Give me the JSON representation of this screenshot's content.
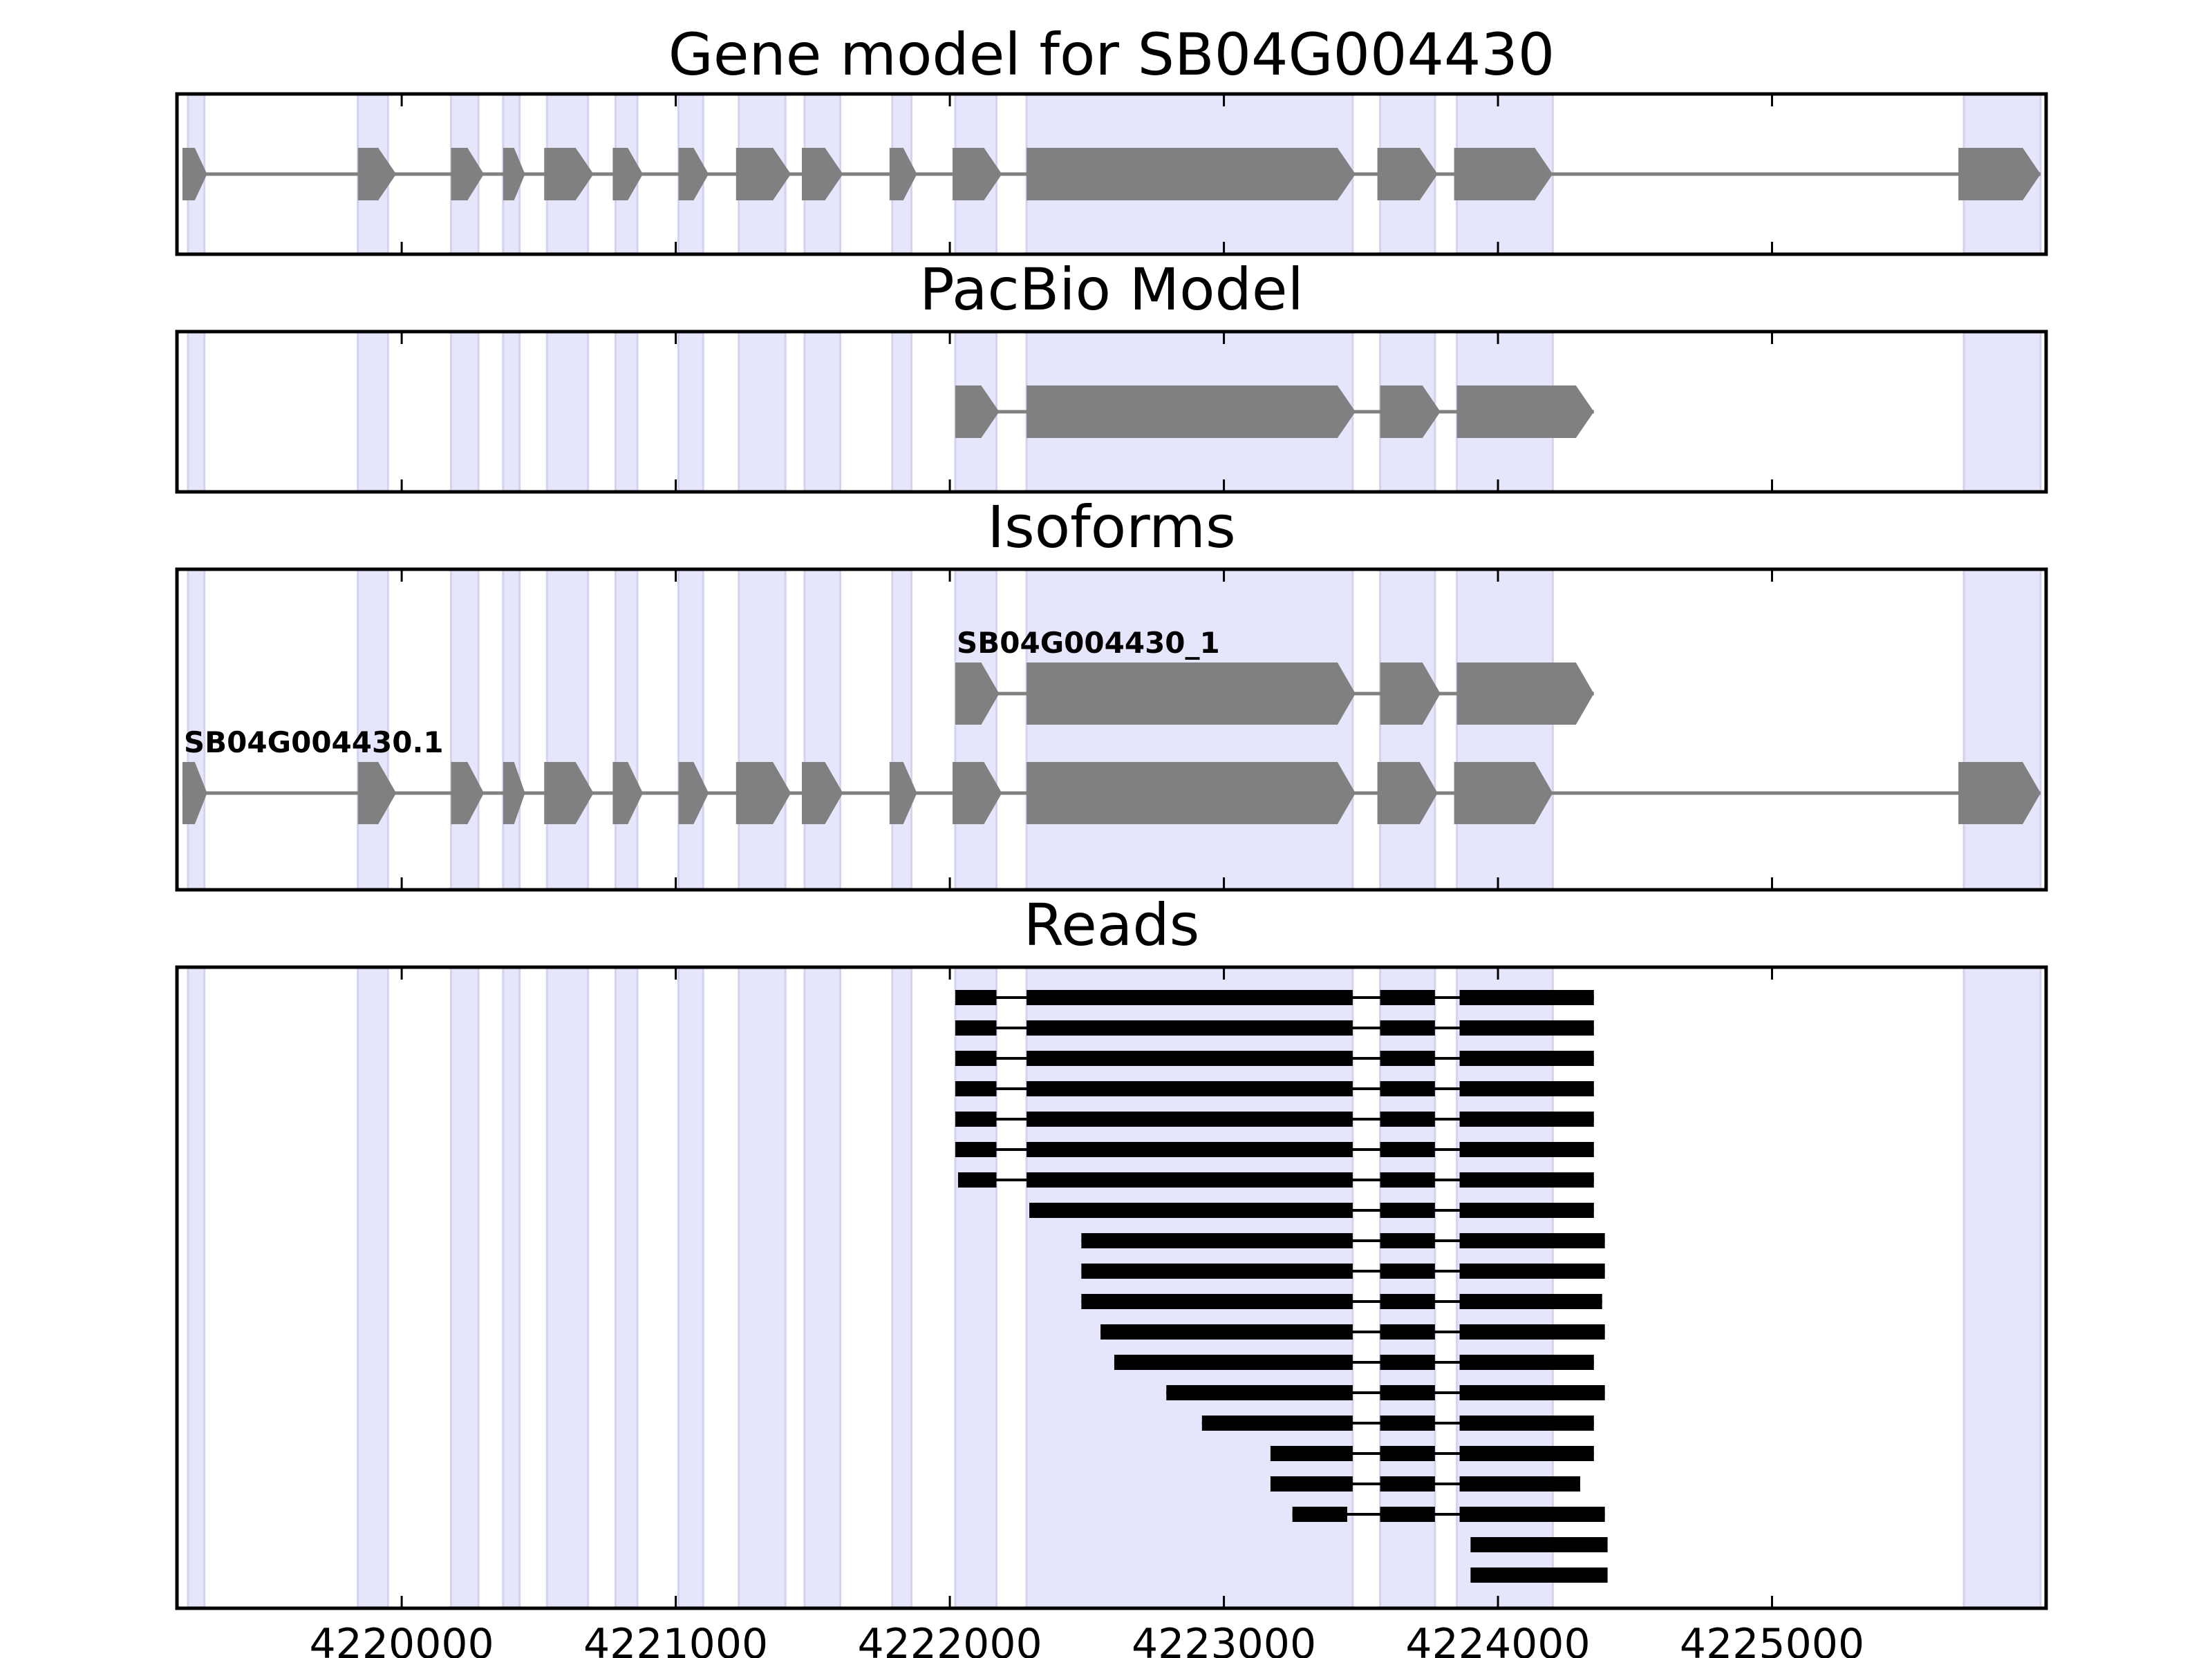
{
  "chart_data": {
    "type": "gene_track",
    "xlim": [
      4219180,
      4226000
    ],
    "x_ticks": [
      4220000,
      4221000,
      4222000,
      4223000,
      4224000,
      4225000
    ],
    "colors": {
      "highlight": "#e5e5fb",
      "highlight_edge": "#d3d3ee",
      "exon": "#808080",
      "read": "#000000",
      "frame": "#000000"
    },
    "highlight_regions": [
      [
        4219220,
        4219280
      ],
      [
        4219840,
        4219950
      ],
      [
        4220180,
        4220280
      ],
      [
        4220370,
        4220430
      ],
      [
        4220530,
        4220680
      ],
      [
        4220780,
        4220860
      ],
      [
        4221010,
        4221100
      ],
      [
        4221230,
        4221400
      ],
      [
        4221470,
        4221600
      ],
      [
        4221790,
        4221860
      ],
      [
        4222020,
        4222170
      ],
      [
        4222280,
        4223470
      ],
      [
        4223570,
        4223770
      ],
      [
        4223850,
        4224200
      ],
      [
        4225700,
        4225980
      ]
    ],
    "panels": [
      {
        "title": "Gene model for SB04G004430",
        "kind": "gene",
        "transcripts": [
          {
            "label": "",
            "exons": [
              [
                4219200,
                4219290
              ],
              [
                4219840,
                4219980
              ],
              [
                4220180,
                4220300
              ],
              [
                4220370,
                4220450
              ],
              [
                4220520,
                4220700
              ],
              [
                4220770,
                4220880
              ],
              [
                4221010,
                4221120
              ],
              [
                4221220,
                4221420
              ],
              [
                4221460,
                4221610
              ],
              [
                4221780,
                4221880
              ],
              [
                4222010,
                4222190
              ],
              [
                4222280,
                4223480
              ],
              [
                4223560,
                4223780
              ],
              [
                4223840,
                4224200
              ],
              [
                4225680,
                4225980
              ]
            ]
          }
        ]
      },
      {
        "title": "PacBio Model",
        "kind": "gene",
        "transcripts": [
          {
            "label": "",
            "exons": [
              [
                4222020,
                4222180
              ],
              [
                4222280,
                4223480
              ],
              [
                4223570,
                4223790
              ],
              [
                4223850,
                4224350
              ]
            ]
          }
        ]
      },
      {
        "title": "Isoforms",
        "kind": "gene",
        "transcripts": [
          {
            "label": "SB04G004430.1",
            "exons": [
              [
                4219200,
                4219290
              ],
              [
                4219840,
                4219980
              ],
              [
                4220180,
                4220300
              ],
              [
                4220370,
                4220450
              ],
              [
                4220520,
                4220700
              ],
              [
                4220770,
                4220880
              ],
              [
                4221010,
                4221120
              ],
              [
                4221220,
                4221420
              ],
              [
                4221460,
                4221610
              ],
              [
                4221780,
                4221880
              ],
              [
                4222010,
                4222190
              ],
              [
                4222280,
                4223480
              ],
              [
                4223560,
                4223780
              ],
              [
                4223840,
                4224200
              ],
              [
                4225680,
                4225980
              ]
            ]
          },
          {
            "label": "SB04G004430_1",
            "exons": [
              [
                4222020,
                4222180
              ],
              [
                4222280,
                4223480
              ],
              [
                4223570,
                4223790
              ],
              [
                4223850,
                4224350
              ]
            ]
          }
        ]
      },
      {
        "title": "Reads",
        "kind": "reads",
        "reads": [
          [
            [
              4222020,
              4222170
            ],
            [
              4222280,
              4223470
            ],
            [
              4223570,
              4223770
            ],
            [
              4223860,
              4224350
            ]
          ],
          [
            [
              4222020,
              4222170
            ],
            [
              4222280,
              4223470
            ],
            [
              4223570,
              4223770
            ],
            [
              4223860,
              4224350
            ]
          ],
          [
            [
              4222020,
              4222170
            ],
            [
              4222280,
              4223470
            ],
            [
              4223570,
              4223770
            ],
            [
              4223860,
              4224350
            ]
          ],
          [
            [
              4222020,
              4222170
            ],
            [
              4222280,
              4223470
            ],
            [
              4223570,
              4223770
            ],
            [
              4223860,
              4224350
            ]
          ],
          [
            [
              4222020,
              4222170
            ],
            [
              4222280,
              4223470
            ],
            [
              4223570,
              4223770
            ],
            [
              4223860,
              4224350
            ]
          ],
          [
            [
              4222020,
              4222170
            ],
            [
              4222280,
              4223470
            ],
            [
              4223570,
              4223770
            ],
            [
              4223860,
              4224350
            ]
          ],
          [
            [
              4222030,
              4222170
            ],
            [
              4222280,
              4223470
            ],
            [
              4223570,
              4223770
            ],
            [
              4223860,
              4224350
            ]
          ],
          [
            [
              4222290,
              4223470
            ],
            [
              4223570,
              4223770
            ],
            [
              4223860,
              4224350
            ]
          ],
          [
            [
              4222480,
              4223470
            ],
            [
              4223570,
              4223770
            ],
            [
              4223860,
              4224390
            ]
          ],
          [
            [
              4222480,
              4223470
            ],
            [
              4223570,
              4223770
            ],
            [
              4223860,
              4224390
            ]
          ],
          [
            [
              4222480,
              4223470
            ],
            [
              4223570,
              4223770
            ],
            [
              4223860,
              4224380
            ]
          ],
          [
            [
              4222550,
              4223470
            ],
            [
              4223570,
              4223770
            ],
            [
              4223860,
              4224390
            ]
          ],
          [
            [
              4222600,
              4223470
            ],
            [
              4223570,
              4223770
            ],
            [
              4223860,
              4224350
            ]
          ],
          [
            [
              4222790,
              4223470
            ],
            [
              4223570,
              4223770
            ],
            [
              4223860,
              4224390
            ]
          ],
          [
            [
              4222920,
              4223470
            ],
            [
              4223570,
              4223770
            ],
            [
              4223860,
              4224350
            ]
          ],
          [
            [
              4223170,
              4223470
            ],
            [
              4223570,
              4223770
            ],
            [
              4223860,
              4224350
            ]
          ],
          [
            [
              4223170,
              4223470
            ],
            [
              4223570,
              4223770
            ],
            [
              4223860,
              4224300
            ]
          ],
          [
            [
              4223250,
              4223450
            ],
            [
              4223570,
              4223770
            ],
            [
              4223860,
              4224390
            ]
          ],
          [
            [
              4223900,
              4224400
            ]
          ],
          [
            [
              4223900,
              4224400
            ]
          ]
        ]
      }
    ]
  }
}
